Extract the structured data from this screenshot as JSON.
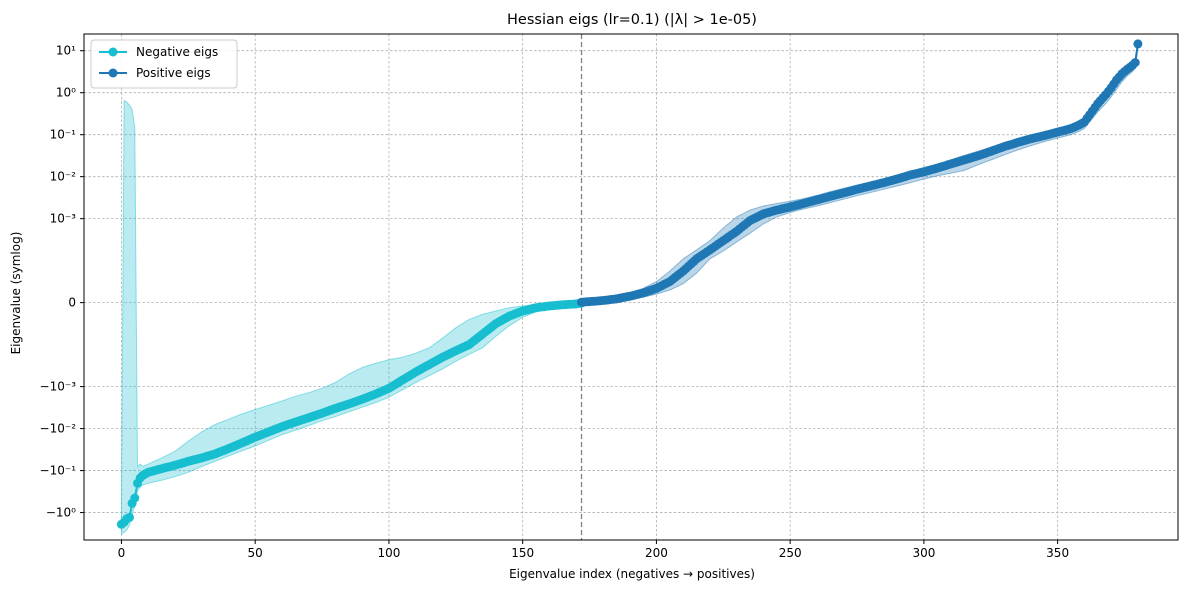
{
  "chart_data": {
    "type": "line",
    "title": "Hessian eigs (lr=0.1) (|λ| > 1e-05)",
    "xlabel": "Eigenvalue index (negatives → positives)",
    "ylabel": "Eigenvalue (symlog)",
    "yscale": "symlog",
    "linthresh": 0.0001,
    "xlim": [
      -14,
      395
    ],
    "ylim": [
      -4.5,
      25
    ],
    "x_ticks": [
      0,
      50,
      100,
      150,
      200,
      250,
      300,
      350
    ],
    "x_tick_labels": [
      "0",
      "50",
      "100",
      "150",
      "200",
      "250",
      "300",
      "350"
    ],
    "y_ticks": [
      -1,
      -0.1,
      -0.01,
      -0.001,
      0,
      0.001,
      0.01,
      0.1,
      1,
      10
    ],
    "y_tick_labels": [
      "−10⁰",
      "−10⁻¹",
      "−10⁻²",
      "−10⁻³",
      "0",
      "10⁻³",
      "10⁻²",
      "10⁻¹",
      "10⁰",
      "10¹"
    ],
    "grid": true,
    "legend_position": "top-left",
    "divider_x": 172,
    "divider_color": "#808080",
    "series": [
      {
        "name": "Negative eigs",
        "color": "#17becf",
        "band_color": "#17becf",
        "x": [
          0,
          1,
          2,
          3,
          4,
          5,
          6,
          7,
          8,
          10,
          15,
          20,
          25,
          30,
          35,
          40,
          45,
          50,
          55,
          60,
          65,
          70,
          75,
          80,
          85,
          90,
          95,
          100,
          105,
          110,
          115,
          120,
          125,
          130,
          135,
          140,
          145,
          150,
          155,
          160,
          165,
          170,
          172
        ],
        "values": [
          -1.9,
          -1.7,
          -1.4,
          -1.3,
          -0.6,
          -0.45,
          -0.2,
          -0.15,
          -0.13,
          -0.11,
          -0.09,
          -0.075,
          -0.06,
          -0.05,
          -0.04,
          -0.03,
          -0.022,
          -0.016,
          -0.012,
          -0.009,
          -0.007,
          -0.0055,
          -0.0043,
          -0.0033,
          -0.0026,
          -0.002,
          -0.0015,
          -0.0011,
          -0.0007,
          -0.00045,
          -0.0003,
          -0.0002,
          -0.00014,
          -0.0001,
          -7.5e-05,
          -5e-05,
          -3.2e-05,
          -2e-05,
          -1.2e-05,
          -8e-06,
          -5e-06,
          -3e-06,
          -1e-06
        ],
        "upper": [
          -1.2,
          0.65,
          0.6,
          0.5,
          0.4,
          0.15,
          -0.08,
          -0.07,
          -0.08,
          -0.07,
          -0.05,
          -0.035,
          -0.02,
          -0.012,
          -0.008,
          -0.006,
          -0.0045,
          -0.0035,
          -0.0028,
          -0.0022,
          -0.0017,
          -0.0014,
          -0.0011,
          -0.0008,
          -0.0005,
          -0.00035,
          -0.00028,
          -0.00023,
          -0.0002,
          -0.00016,
          -0.00012,
          -8.5e-05,
          -6e-05,
          -4e-05,
          -2.8e-05,
          -2e-05,
          -1.2e-05,
          -8e-06,
          -5e-06,
          -3e-06,
          -2e-06,
          -1e-06,
          -5e-07
        ],
        "lower": [
          -3.2,
          -3.0,
          -2.6,
          -2.0,
          -1.1,
          -0.7,
          -0.3,
          -0.25,
          -0.22,
          -0.2,
          -0.17,
          -0.14,
          -0.11,
          -0.08,
          -0.06,
          -0.045,
          -0.034,
          -0.026,
          -0.019,
          -0.014,
          -0.011,
          -0.0085,
          -0.0065,
          -0.0052,
          -0.004,
          -0.0031,
          -0.0024,
          -0.0018,
          -0.0012,
          -0.0008,
          -0.00055,
          -0.00038,
          -0.00025,
          -0.00017,
          -0.00012,
          -8e-05,
          -5.5e-05,
          -3.5e-05,
          -2.2e-05,
          -1.4e-05,
          -9e-06,
          -5e-06,
          -2e-06
        ]
      },
      {
        "name": "Positive eigs",
        "color": "#1f77b4",
        "band_color": "#1f77b4",
        "x": [
          172,
          175,
          180,
          185,
          190,
          195,
          200,
          205,
          210,
          215,
          220,
          225,
          230,
          235,
          240,
          245,
          250,
          255,
          260,
          265,
          270,
          275,
          280,
          285,
          290,
          295,
          300,
          305,
          310,
          315,
          320,
          325,
          330,
          335,
          340,
          345,
          350,
          355,
          358,
          360,
          362,
          365,
          368,
          370,
          372,
          374,
          376,
          378,
          379,
          380
        ],
        "values": [
          1e-06,
          2.5e-06,
          5e-06,
          9e-06,
          1.5e-05,
          2.3e-05,
          3.4e-05,
          5e-05,
          7.5e-05,
          0.00011,
          0.00018,
          0.0003,
          0.0005,
          0.0009,
          0.0013,
          0.0016,
          0.0019,
          0.0023,
          0.0028,
          0.0034,
          0.0041,
          0.005,
          0.006,
          0.0072,
          0.0088,
          0.011,
          0.013,
          0.016,
          0.02,
          0.025,
          0.031,
          0.04,
          0.052,
          0.065,
          0.08,
          0.095,
          0.115,
          0.14,
          0.17,
          0.2,
          0.3,
          0.55,
          0.9,
          1.3,
          2.0,
          2.8,
          3.6,
          4.5,
          5.2,
          14.5
        ],
        "upper": [
          2e-06,
          4e-06,
          8e-06,
          1.4e-05,
          2.2e-05,
          3.4e-05,
          5e-05,
          7.5e-05,
          0.00011,
          0.00018,
          0.0003,
          0.0006,
          0.0011,
          0.0016,
          0.002,
          0.0023,
          0.0026,
          0.003,
          0.0036,
          0.0044,
          0.0053,
          0.0063,
          0.0075,
          0.009,
          0.011,
          0.0135,
          0.0165,
          0.02,
          0.025,
          0.032,
          0.04,
          0.05,
          0.063,
          0.078,
          0.093,
          0.11,
          0.13,
          0.16,
          0.2,
          0.27,
          0.4,
          0.7,
          1.2,
          1.8,
          2.6,
          3.5,
          4.5,
          5.6,
          6.5,
          15.5
        ],
        "lower": [
          5e-07,
          1.2e-06,
          2.8e-06,
          5e-06,
          8.5e-06,
          1.3e-05,
          2e-05,
          3e-05,
          4.5e-05,
          7e-05,
          0.00011,
          0.00017,
          0.00028,
          0.00045,
          0.00075,
          0.0011,
          0.0014,
          0.0017,
          0.002,
          0.0024,
          0.0029,
          0.0035,
          0.0042,
          0.005,
          0.006,
          0.0072,
          0.0088,
          0.0105,
          0.012,
          0.014,
          0.019,
          0.025,
          0.033,
          0.043,
          0.055,
          0.068,
          0.083,
          0.1,
          0.12,
          0.14,
          0.2,
          0.35,
          0.55,
          0.8,
          1.2,
          1.8,
          2.5,
          3.2,
          3.9,
          12.0
        ]
      }
    ]
  }
}
